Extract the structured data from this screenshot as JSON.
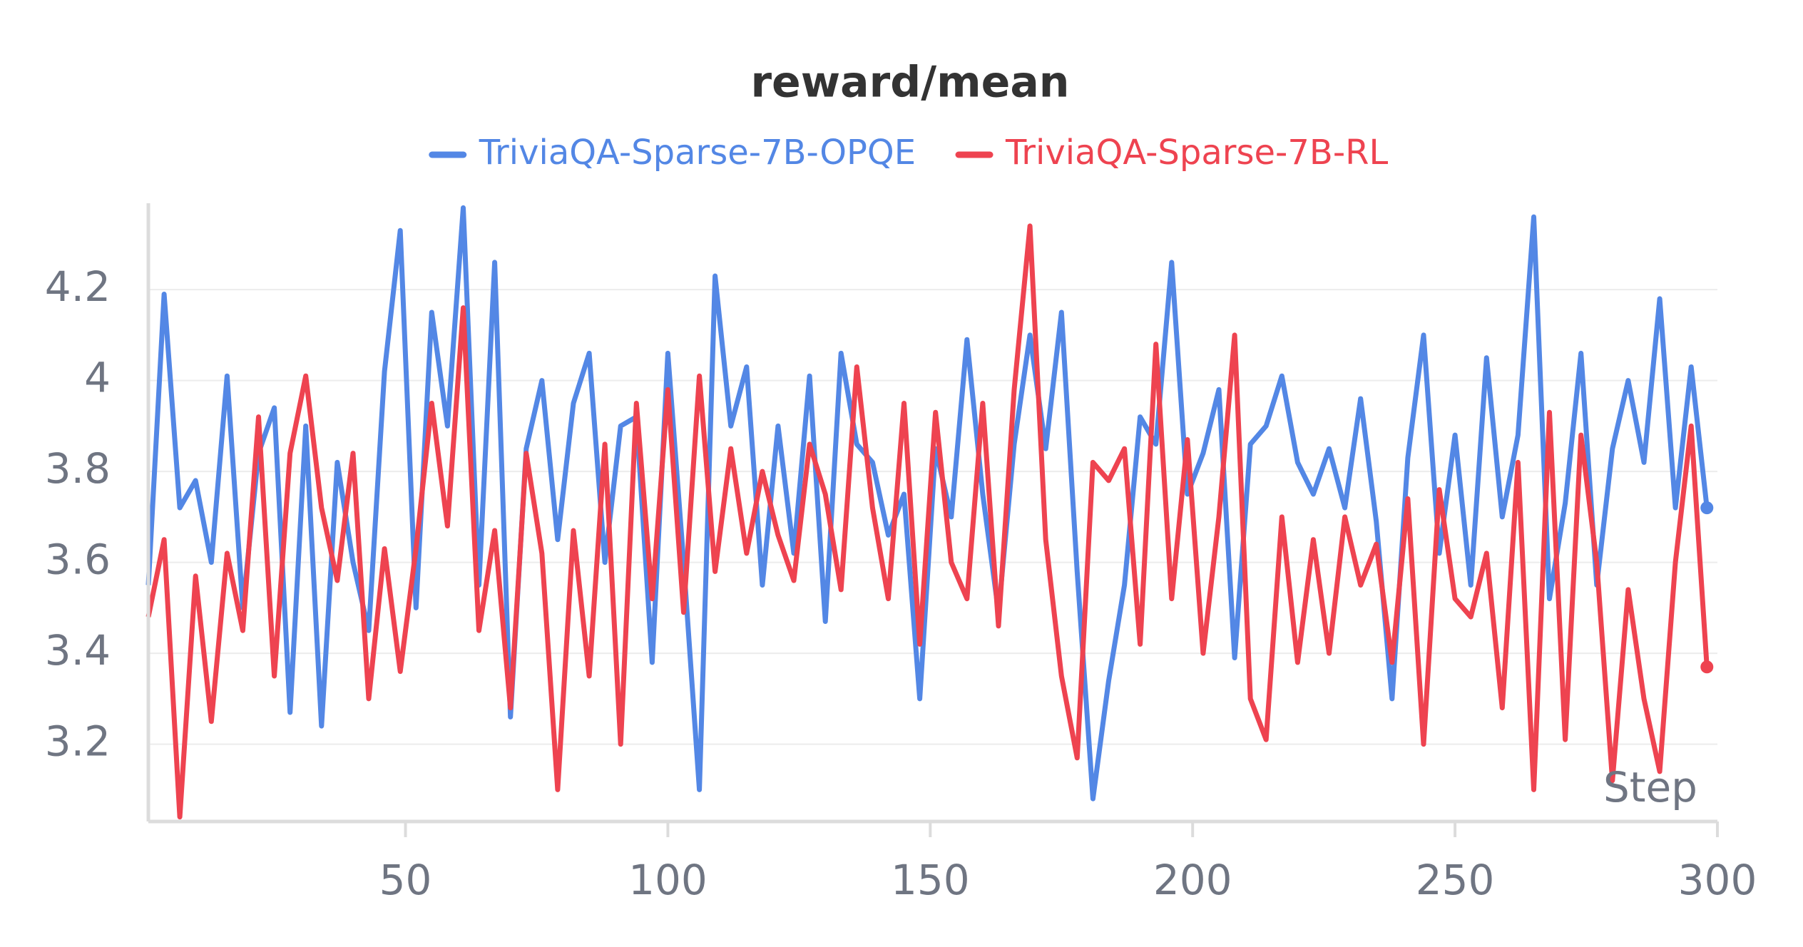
{
  "chart_data": {
    "type": "line",
    "title": "reward/mean",
    "xlabel": "Step",
    "x": [
      1,
      4,
      7,
      10,
      13,
      16,
      19,
      22,
      25,
      28,
      31,
      34,
      37,
      40,
      43,
      46,
      49,
      52,
      55,
      58,
      61,
      64,
      67,
      70,
      73,
      76,
      79,
      82,
      85,
      88,
      91,
      94,
      97,
      100,
      103,
      106,
      109,
      112,
      115,
      118,
      121,
      124,
      127,
      130,
      133,
      136,
      139,
      142,
      145,
      148,
      151,
      154,
      157,
      160,
      163,
      166,
      169,
      172,
      175,
      178,
      181,
      184,
      187,
      190,
      193,
      196,
      199,
      202,
      205,
      208,
      211,
      214,
      217,
      220,
      223,
      226,
      229,
      232,
      235,
      238,
      241,
      244,
      247,
      250,
      253,
      256,
      259,
      262,
      265,
      268,
      271,
      274,
      277,
      280,
      283,
      286,
      289,
      292,
      295,
      298
    ],
    "series": [
      {
        "name": "TriviaQA-Sparse-7B-OPQE",
        "color": "#5387e5",
        "values": [
          3.55,
          4.19,
          3.72,
          3.78,
          3.6,
          4.01,
          3.5,
          3.84,
          3.94,
          3.27,
          3.9,
          3.24,
          3.82,
          3.6,
          3.45,
          4.02,
          4.33,
          3.5,
          4.15,
          3.9,
          4.38,
          3.55,
          4.26,
          3.26,
          3.85,
          4.0,
          3.65,
          3.95,
          4.06,
          3.6,
          3.9,
          3.92,
          3.38,
          4.06,
          3.6,
          3.1,
          4.23,
          3.9,
          4.03,
          3.55,
          3.9,
          3.62,
          4.01,
          3.47,
          4.06,
          3.86,
          3.82,
          3.66,
          3.75,
          3.3,
          3.85,
          3.7,
          4.09,
          3.75,
          3.49,
          3.86,
          4.1,
          3.85,
          4.15,
          3.58,
          3.08,
          3.34,
          3.55,
          3.92,
          3.86,
          4.26,
          3.75,
          3.84,
          3.98,
          3.39,
          3.86,
          3.9,
          4.01,
          3.82,
          3.75,
          3.85,
          3.72,
          3.96,
          3.69,
          3.3,
          3.83,
          4.1,
          3.62,
          3.88,
          3.55,
          4.05,
          3.7,
          3.88,
          4.36,
          3.52,
          3.73,
          4.06,
          3.55,
          3.85,
          4.0,
          3.82,
          4.18,
          3.72,
          4.03,
          3.72
        ]
      },
      {
        "name": "TriviaQA-Sparse-7B-RL",
        "color": "#ee4350",
        "values": [
          3.48,
          3.65,
          3.04,
          3.57,
          3.25,
          3.62,
          3.45,
          3.92,
          3.35,
          3.84,
          4.01,
          3.72,
          3.56,
          3.84,
          3.3,
          3.63,
          3.36,
          3.63,
          3.95,
          3.68,
          4.16,
          3.45,
          3.67,
          3.28,
          3.84,
          3.62,
          3.1,
          3.67,
          3.35,
          3.86,
          3.2,
          3.95,
          3.52,
          3.98,
          3.49,
          4.01,
          3.58,
          3.85,
          3.62,
          3.8,
          3.66,
          3.56,
          3.86,
          3.75,
          3.54,
          4.03,
          3.72,
          3.52,
          3.95,
          3.42,
          3.93,
          3.6,
          3.52,
          3.95,
          3.46,
          3.98,
          4.34,
          3.65,
          3.35,
          3.17,
          3.82,
          3.78,
          3.85,
          3.42,
          4.08,
          3.52,
          3.87,
          3.4,
          3.7,
          4.1,
          3.3,
          3.21,
          3.7,
          3.38,
          3.65,
          3.4,
          3.7,
          3.55,
          3.64,
          3.38,
          3.74,
          3.2,
          3.76,
          3.52,
          3.48,
          3.62,
          3.28,
          3.82,
          3.1,
          3.93,
          3.21,
          3.88,
          3.6,
          3.12,
          3.54,
          3.3,
          3.14,
          3.6,
          3.9,
          3.37
        ]
      }
    ],
    "xlim": [
      1,
      300
    ],
    "ylim": [
      3.03,
      4.39
    ],
    "xticks": [
      50,
      100,
      150,
      200,
      250,
      300
    ],
    "yticks": [
      3.2,
      3.4,
      3.6,
      3.8,
      4,
      4.2
    ],
    "grid": true,
    "legend": "top"
  }
}
